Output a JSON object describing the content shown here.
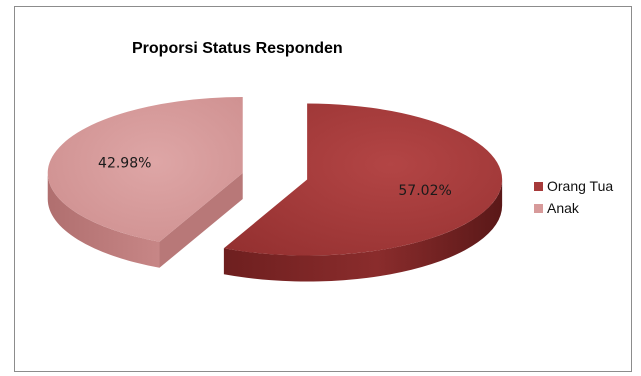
{
  "chart_data": {
    "type": "pie",
    "title": "Proporsi Status Responden",
    "slices": [
      {
        "name": "Orang Tua",
        "value": 57.02,
        "label": "57.02%",
        "color": "#a63a3a"
      },
      {
        "name": "Anak",
        "value": 42.98,
        "label": "42.98%",
        "color": "#d79a9a"
      }
    ],
    "legend_position": "right",
    "style": "3d-exploded"
  }
}
